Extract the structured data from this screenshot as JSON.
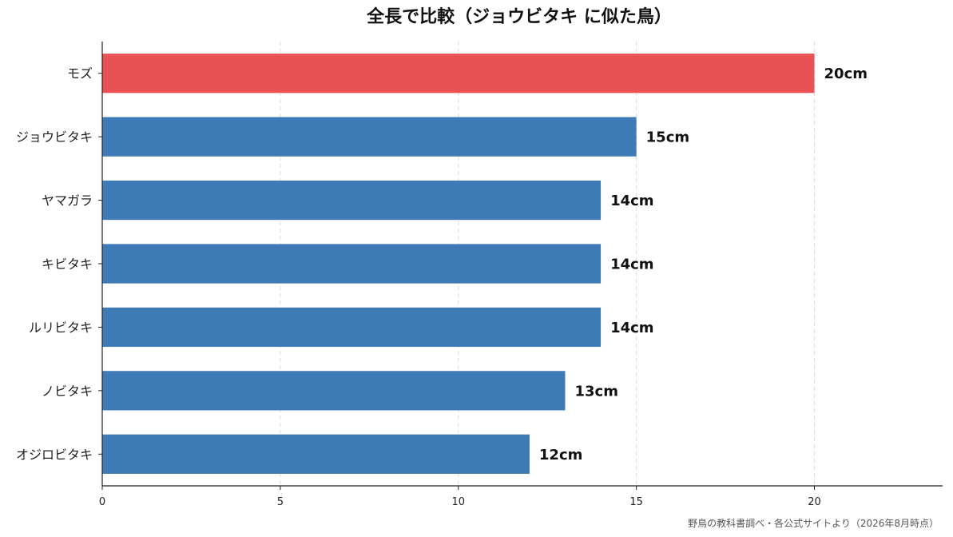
{
  "chart_data": {
    "type": "bar",
    "orientation": "horizontal",
    "title": "全長で比較（ジョウビタキ に似た鳥）",
    "categories": [
      "モズ",
      "ジョウビタキ",
      "ヤマガラ",
      "キビタキ",
      "ルリビタキ",
      "ノビタキ",
      "オジロビタキ"
    ],
    "values": [
      20,
      15,
      14,
      14,
      14,
      13,
      12
    ],
    "value_labels": [
      "20cm",
      "15cm",
      "14cm",
      "14cm",
      "14cm",
      "13cm",
      "12cm"
    ],
    "highlight_index": 0,
    "colors": {
      "highlight": "#e85255",
      "default": "#3e7bb6"
    },
    "xlabel": "",
    "ylabel": "",
    "xlim": [
      0,
      23.6
    ],
    "xticks": [
      "0",
      "5",
      "10",
      "15",
      "20"
    ],
    "grid": "vertical dashed",
    "source_note": "野鳥の教科書調べ・各公式サイトより（2026年8月時点）"
  }
}
